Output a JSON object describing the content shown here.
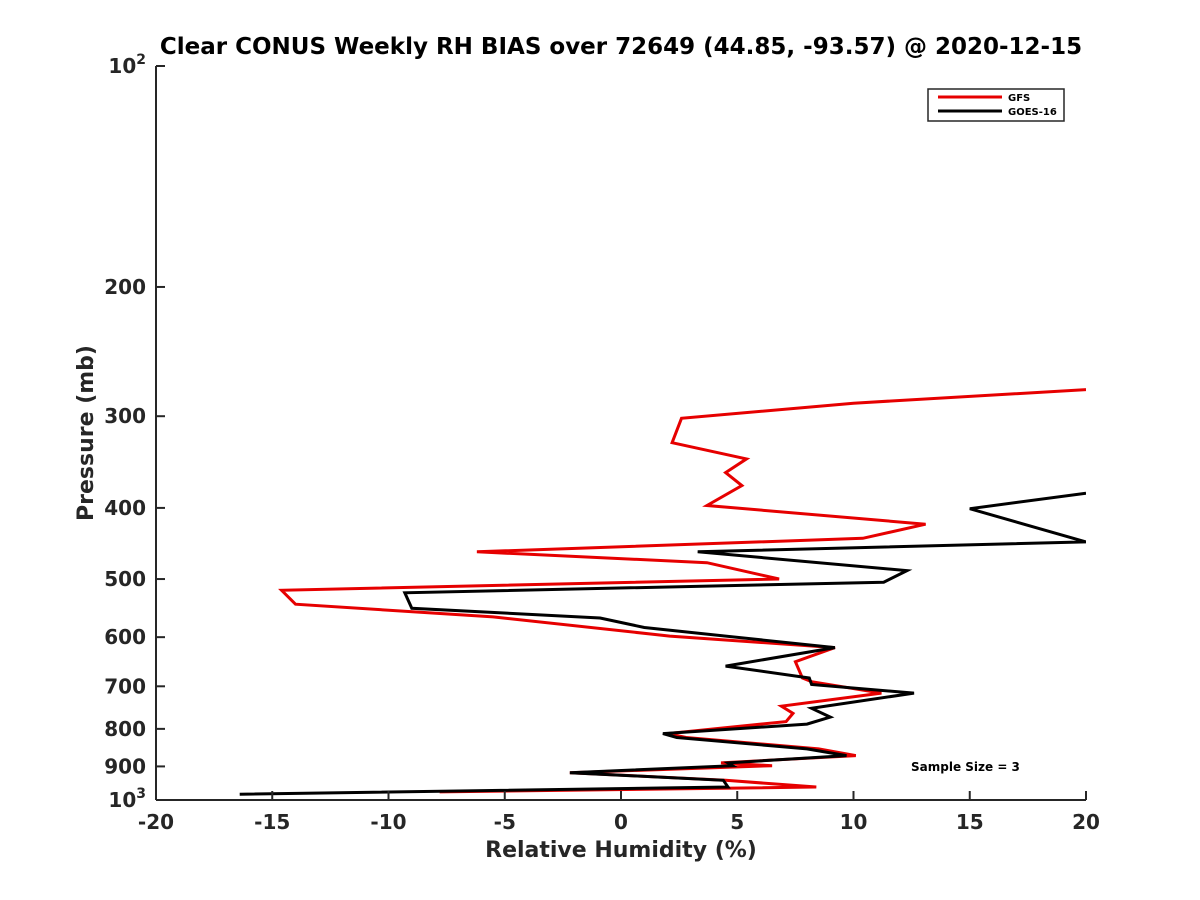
{
  "chart_data": {
    "type": "line",
    "title": "Clear CONUS Weekly RH BIAS over 72649 (44.85, -93.57) @ 2020-12-15",
    "xlabel": "Relative Humidity (%)",
    "ylabel": "Pressure (mb)",
    "xlim": [
      -20,
      20
    ],
    "ylim": [
      100,
      1000
    ],
    "y_scale": "log",
    "y_reversed": true,
    "x_ticks": [
      "-20",
      "-15",
      "-10",
      "-5",
      "0",
      "5",
      "10",
      "15",
      "20"
    ],
    "y_ticks": [
      {
        "value": 100,
        "base": "10",
        "exp": "2"
      },
      {
        "value": 200,
        "label": "200"
      },
      {
        "value": 300,
        "label": "300"
      },
      {
        "value": 400,
        "label": "400"
      },
      {
        "value": 500,
        "label": "500"
      },
      {
        "value": 600,
        "label": "600"
      },
      {
        "value": 700,
        "label": "700"
      },
      {
        "value": 800,
        "label": "800"
      },
      {
        "value": 900,
        "label": "900"
      },
      {
        "value": 1000,
        "base": "10",
        "exp": "3"
      }
    ],
    "grid": false,
    "legend_position": "top-right",
    "annotation": "Sample Size = 3",
    "series": [
      {
        "name": "GFS",
        "color": "#e60000",
        "points": [
          [
            -7.8,
            975
          ],
          [
            8.4,
            960
          ],
          [
            4.5,
            940
          ],
          [
            -2.2,
            918
          ],
          [
            6.5,
            898
          ],
          [
            4.3,
            890
          ],
          [
            10.1,
            870
          ],
          [
            8.5,
            852
          ],
          [
            2.8,
            822
          ],
          [
            2.0,
            812
          ],
          [
            7.1,
            782
          ],
          [
            7.4,
            762
          ],
          [
            6.9,
            745
          ],
          [
            11.2,
            715
          ],
          [
            8.2,
            690
          ],
          [
            7.8,
            682
          ],
          [
            7.5,
            648
          ],
          [
            9.2,
            620
          ],
          [
            2.1,
            598
          ],
          [
            -5.5,
            563
          ],
          [
            -14.0,
            541
          ],
          [
            -14.6,
            518
          ],
          [
            6.8,
            500
          ],
          [
            3.7,
            475
          ],
          [
            -6.2,
            459
          ],
          [
            10.4,
            440
          ],
          [
            13.1,
            421
          ],
          [
            3.7,
            397
          ],
          [
            5.2,
            373
          ],
          [
            4.5,
            358
          ],
          [
            5.4,
            343
          ],
          [
            2.2,
            326
          ],
          [
            2.6,
            302
          ],
          [
            10.0,
            288
          ],
          [
            20.0,
            276
          ]
        ]
      },
      {
        "name": "GOES-16",
        "color": "#000000",
        "points": [
          [
            -16.4,
            982
          ],
          [
            4.6,
            960
          ],
          [
            4.4,
            940
          ],
          [
            -2.2,
            918
          ],
          [
            4.8,
            898
          ],
          [
            4.6,
            890
          ],
          [
            9.7,
            870
          ],
          [
            8.0,
            852
          ],
          [
            2.4,
            822
          ],
          [
            1.8,
            812
          ],
          [
            8.0,
            788
          ],
          [
            9.0,
            771
          ],
          [
            8.2,
            750
          ],
          [
            12.6,
            715
          ],
          [
            8.2,
            696
          ],
          [
            8.1,
            682
          ],
          [
            4.5,
            657
          ],
          [
            9.2,
            620
          ],
          [
            6.0,
            605
          ],
          [
            1.0,
            582
          ],
          [
            -0.9,
            565
          ],
          [
            -9.0,
            548
          ],
          [
            -9.3,
            522
          ],
          [
            11.3,
            505
          ],
          [
            12.3,
            487
          ],
          [
            3.3,
            459
          ],
          [
            20.0,
            445
          ],
          [
            15.0,
            401
          ],
          [
            20.0,
            382
          ]
        ]
      }
    ]
  }
}
